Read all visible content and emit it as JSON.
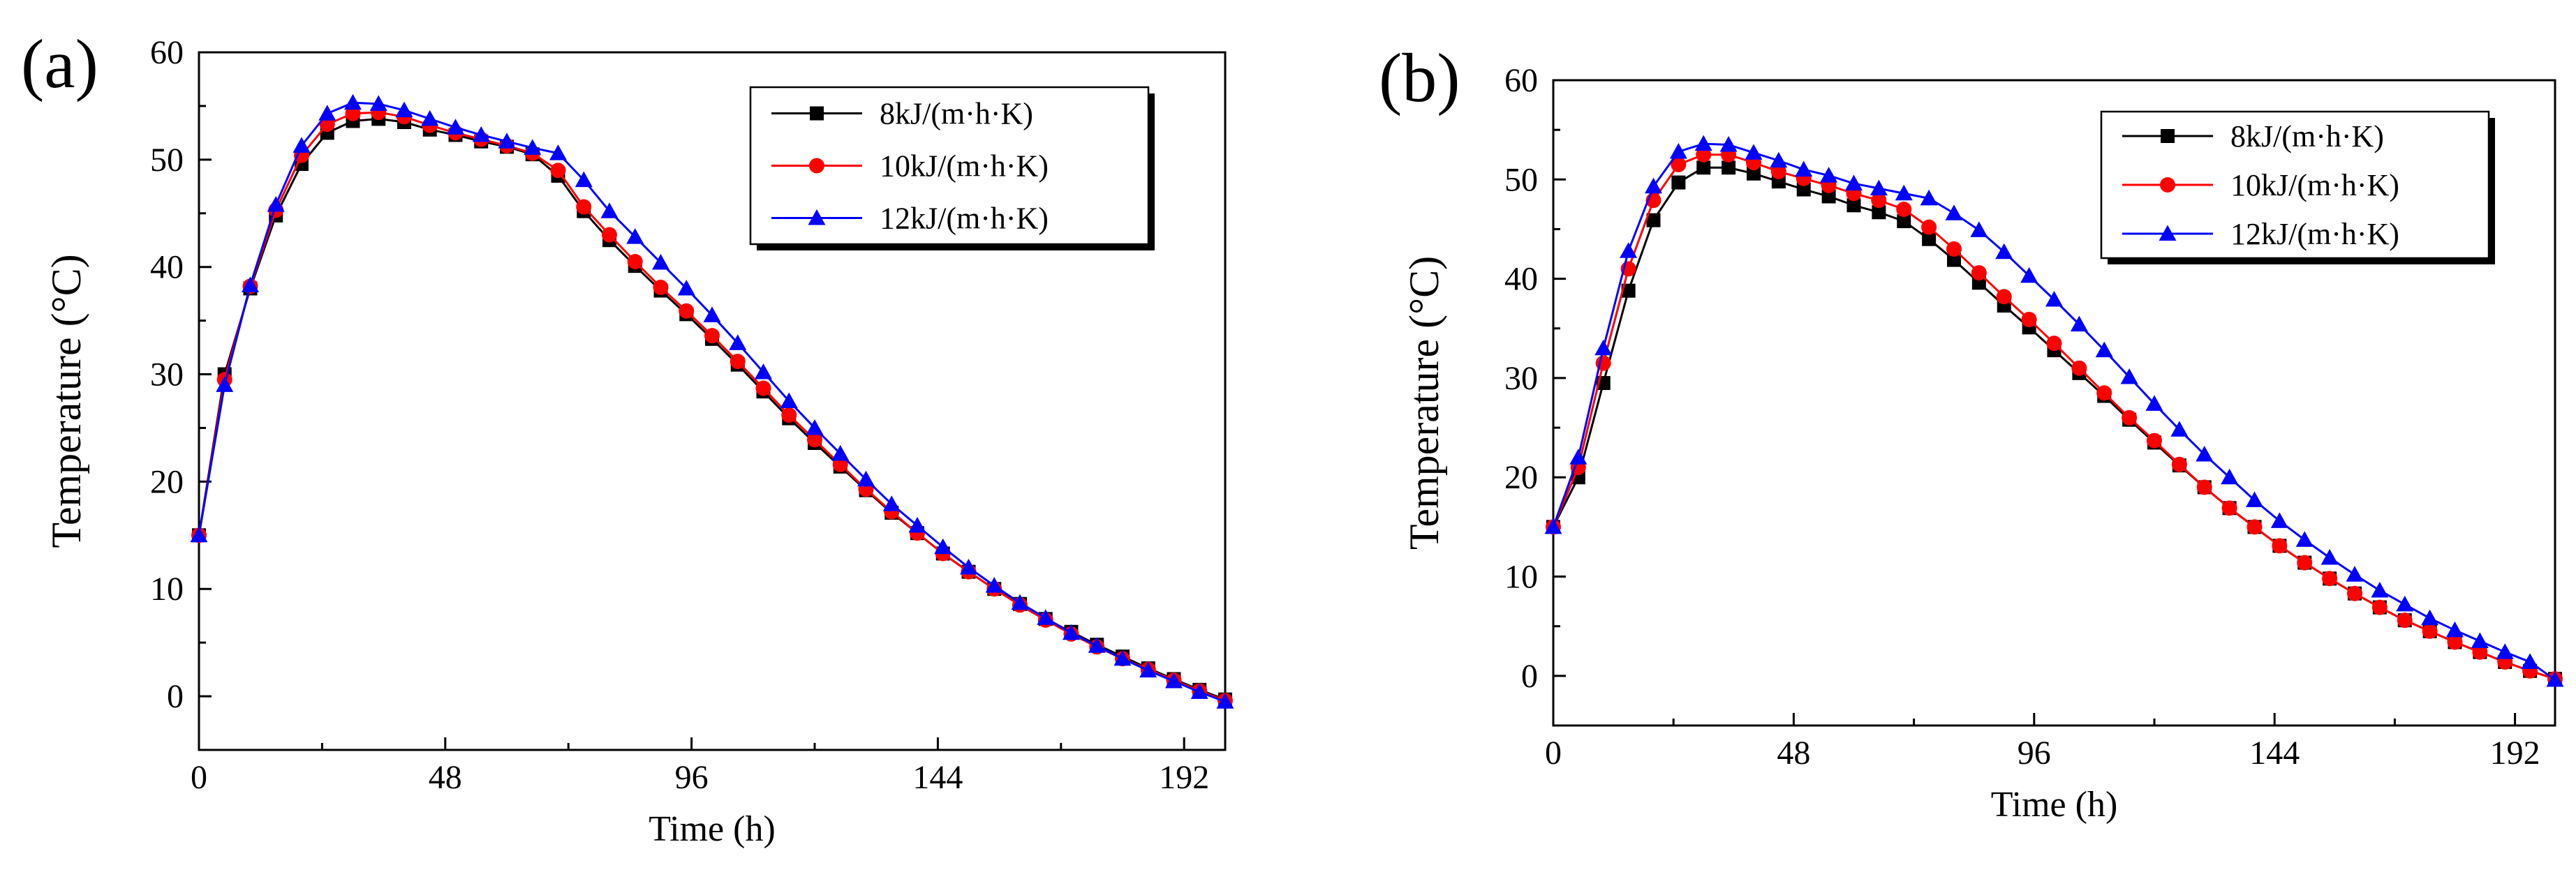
{
  "chart_data": [
    {
      "type": "line",
      "panel_label": "(a)",
      "xlabel": "Time (h)",
      "ylabel": "Temperature (°C)",
      "xlim": [
        0,
        200
      ],
      "ylim": [
        -5,
        60
      ],
      "xticks": [
        0,
        48,
        96,
        144,
        192
      ],
      "yticks": [
        0,
        10,
        20,
        30,
        40,
        50,
        60
      ],
      "legend_position": "top-right",
      "grid": false,
      "x": [
        0,
        5,
        10,
        15,
        20,
        25,
        30,
        35,
        40,
        45,
        50,
        55,
        60,
        65,
        70,
        75,
        80,
        85,
        90,
        95,
        100,
        105,
        110,
        115,
        120,
        125,
        130,
        135,
        140,
        145,
        150,
        155,
        160,
        165,
        170,
        175,
        180,
        185,
        190,
        195,
        200
      ],
      "series": [
        {
          "name": "8kJ/(m·h·K)",
          "color": "#000000",
          "marker": "square",
          "values": [
            15,
            30,
            38,
            44.8,
            49.6,
            52.5,
            53.6,
            53.8,
            53.5,
            52.8,
            52.3,
            51.7,
            51.2,
            50.5,
            48.5,
            45.2,
            42.5,
            40.1,
            37.8,
            35.6,
            33.3,
            30.9,
            28.4,
            25.9,
            23.6,
            21.4,
            19.2,
            17.1,
            15.2,
            13.3,
            11.6,
            10.0,
            8.6,
            7.2,
            6.0,
            4.8,
            3.7,
            2.6,
            1.6,
            0.6,
            -0.3
          ]
        },
        {
          "name": "10kJ/(m·h·K)",
          "color": "#ff0000",
          "marker": "circle",
          "values": [
            15,
            29.5,
            38.2,
            45.3,
            50.4,
            53.3,
            54.3,
            54.4,
            54.0,
            53.2,
            52.5,
            51.9,
            51.3,
            50.6,
            49.0,
            45.6,
            43.0,
            40.5,
            38.1,
            35.9,
            33.6,
            31.2,
            28.7,
            26.2,
            23.9,
            21.6,
            19.3,
            17.2,
            15.2,
            13.3,
            11.6,
            10.0,
            8.5,
            7.1,
            5.8,
            4.6,
            3.5,
            2.5,
            1.5,
            0.5,
            -0.4
          ]
        },
        {
          "name": "12kJ/(m·h·K)",
          "color": "#0000ff",
          "marker": "triangle",
          "values": [
            15,
            29,
            38.3,
            45.8,
            51.3,
            54.3,
            55.3,
            55.2,
            54.6,
            53.8,
            53.0,
            52.3,
            51.7,
            51.1,
            50.6,
            48.1,
            45.2,
            42.8,
            40.4,
            38.0,
            35.5,
            32.9,
            30.2,
            27.5,
            25.0,
            22.6,
            20.2,
            17.9,
            15.9,
            13.9,
            12.0,
            10.3,
            8.7,
            7.3,
            5.9,
            4.7,
            3.5,
            2.4,
            1.4,
            0.4,
            -0.5
          ]
        }
      ]
    },
    {
      "type": "line",
      "panel_label": "(b)",
      "xlabel": "Time (h)",
      "ylabel": "Temperature (°C)",
      "xlim": [
        0,
        200
      ],
      "ylim": [
        -5,
        60
      ],
      "xticks": [
        0,
        48,
        96,
        144,
        192
      ],
      "yticks": [
        0,
        10,
        20,
        30,
        40,
        50,
        60
      ],
      "legend_position": "top-right",
      "grid": false,
      "x": [
        0,
        5,
        10,
        15,
        20,
        25,
        30,
        35,
        40,
        45,
        50,
        55,
        60,
        65,
        70,
        75,
        80,
        85,
        90,
        95,
        100,
        105,
        110,
        115,
        120,
        125,
        130,
        135,
        140,
        145,
        150,
        155,
        160,
        165,
        170,
        175,
        180,
        185,
        190,
        195,
        200
      ],
      "series": [
        {
          "name": "8kJ/(m·h·K)",
          "color": "#000000",
          "marker": "square",
          "values": [
            15,
            20,
            29.5,
            38.8,
            45.9,
            49.7,
            51.2,
            51.2,
            50.6,
            49.8,
            49.0,
            48.3,
            47.4,
            46.7,
            45.8,
            44.0,
            41.9,
            39.6,
            37.3,
            35.1,
            32.8,
            30.5,
            28.2,
            25.8,
            23.5,
            21.2,
            19.0,
            16.9,
            15.0,
            13.1,
            11.4,
            9.8,
            8.3,
            6.9,
            5.6,
            4.5,
            3.4,
            2.4,
            1.4,
            0.5,
            -0.3
          ]
        },
        {
          "name": "10kJ/(m·h·K)",
          "color": "#ff0000",
          "marker": "circle",
          "values": [
            15,
            21,
            31.5,
            41.0,
            47.9,
            51.5,
            52.5,
            52.5,
            51.7,
            50.8,
            50.1,
            49.4,
            48.6,
            47.9,
            47.0,
            45.2,
            43.0,
            40.6,
            38.2,
            35.9,
            33.5,
            31.0,
            28.5,
            26.0,
            23.7,
            21.3,
            19.0,
            16.9,
            15.0,
            13.1,
            11.4,
            9.8,
            8.3,
            6.9,
            5.6,
            4.5,
            3.4,
            2.4,
            1.4,
            0.5,
            -0.3
          ]
        },
        {
          "name": "12kJ/(m·h·K)",
          "color": "#0000ff",
          "marker": "triangle",
          "values": [
            15,
            22,
            33.0,
            42.8,
            49.3,
            52.8,
            53.6,
            53.5,
            52.7,
            51.9,
            51.0,
            50.4,
            49.6,
            49.1,
            48.6,
            48.1,
            46.6,
            44.9,
            42.7,
            40.3,
            37.9,
            35.4,
            32.8,
            30.1,
            27.4,
            24.8,
            22.3,
            20.0,
            17.7,
            15.6,
            13.7,
            11.9,
            10.2,
            8.6,
            7.2,
            5.8,
            4.6,
            3.5,
            2.4,
            1.4,
            -0.4
          ]
        }
      ]
    }
  ]
}
